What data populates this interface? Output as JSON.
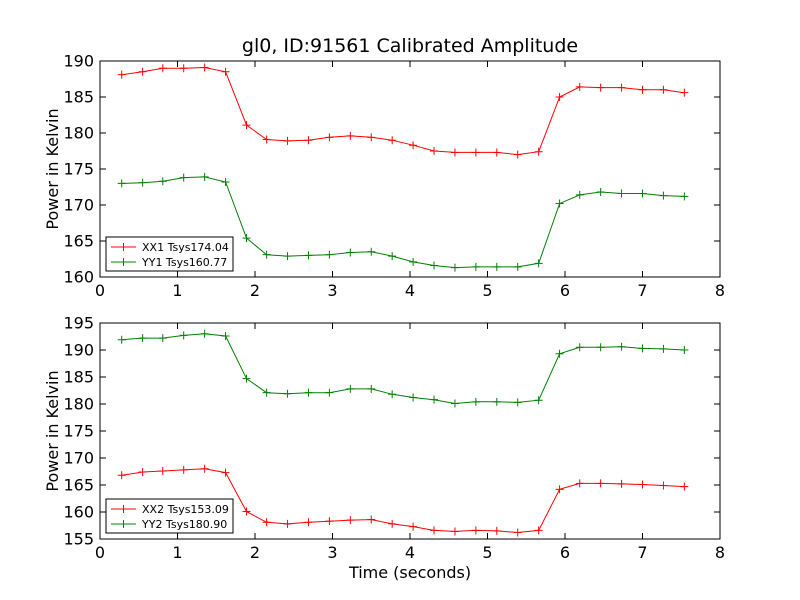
{
  "chart_data": [
    {
      "type": "line",
      "title": "gl0, ID:91561 Calibrated Amplitude",
      "xlabel": "",
      "ylabel": "Power in Kelvin",
      "xlim": [
        0,
        8
      ],
      "ylim": [
        160,
        190
      ],
      "xticks": [
        "0",
        "1",
        "2",
        "3",
        "4",
        "5",
        "6",
        "7",
        "8"
      ],
      "yticks": [
        "160",
        "165",
        "170",
        "175",
        "180",
        "185",
        "190"
      ],
      "legend_position": "lower-left",
      "x": [
        0.28,
        0.55,
        0.81,
        1.08,
        1.35,
        1.62,
        1.89,
        2.15,
        2.42,
        2.69,
        2.96,
        3.23,
        3.5,
        3.77,
        4.04,
        4.31,
        4.58,
        4.85,
        5.12,
        5.39,
        5.66,
        5.93,
        6.19,
        6.46,
        6.73,
        7.0,
        7.27,
        7.54
      ],
      "series": [
        {
          "name": "XX1 Tsys174.04",
          "color": "#ff0000",
          "values": [
            188.1,
            188.5,
            189.0,
            189.0,
            189.1,
            188.5,
            181.1,
            179.1,
            178.9,
            179.0,
            179.4,
            179.6,
            179.4,
            179.0,
            178.3,
            177.5,
            177.3,
            177.3,
            177.3,
            177.0,
            177.4,
            185.0,
            186.4,
            186.3,
            186.3,
            186.0,
            186.0,
            185.6
          ]
        },
        {
          "name": "YY1 Tsys160.77",
          "color": "#008000",
          "values": [
            173.0,
            173.1,
            173.3,
            173.8,
            173.9,
            173.2,
            165.4,
            163.1,
            162.9,
            163.0,
            163.1,
            163.4,
            163.5,
            162.9,
            162.1,
            161.6,
            161.3,
            161.4,
            161.4,
            161.4,
            161.9,
            170.2,
            171.4,
            171.8,
            171.6,
            171.6,
            171.3,
            171.2
          ]
        }
      ]
    },
    {
      "type": "line",
      "title": "",
      "xlabel": "Time (seconds)",
      "ylabel": "Power in Kelvin",
      "xlim": [
        0,
        8
      ],
      "ylim": [
        155,
        195
      ],
      "xticks": [
        "0",
        "1",
        "2",
        "3",
        "4",
        "5",
        "6",
        "7",
        "8"
      ],
      "yticks": [
        "155",
        "160",
        "165",
        "170",
        "175",
        "180",
        "185",
        "190",
        "195"
      ],
      "legend_position": "lower-left",
      "x": [
        0.28,
        0.55,
        0.81,
        1.08,
        1.35,
        1.62,
        1.89,
        2.15,
        2.42,
        2.69,
        2.96,
        3.23,
        3.5,
        3.77,
        4.04,
        4.31,
        4.58,
        4.85,
        5.12,
        5.39,
        5.66,
        5.93,
        6.19,
        6.46,
        6.73,
        7.0,
        7.27,
        7.54
      ],
      "series": [
        {
          "name": "XX2 Tsys153.09",
          "color": "#ff0000",
          "values": [
            166.8,
            167.4,
            167.6,
            167.8,
            168.0,
            167.3,
            160.1,
            158.1,
            157.8,
            158.1,
            158.3,
            158.5,
            158.6,
            157.8,
            157.3,
            156.6,
            156.4,
            156.6,
            156.5,
            156.2,
            156.6,
            164.2,
            165.3,
            165.3,
            165.2,
            165.1,
            164.9,
            164.7
          ]
        },
        {
          "name": "YY2 Tsys180.90",
          "color": "#008000",
          "values": [
            191.9,
            192.2,
            192.2,
            192.7,
            193.0,
            192.6,
            184.7,
            182.1,
            181.9,
            182.1,
            182.1,
            182.8,
            182.8,
            181.8,
            181.2,
            180.8,
            180.1,
            180.4,
            180.4,
            180.3,
            180.7,
            189.3,
            190.5,
            190.5,
            190.6,
            190.3,
            190.2,
            190.0
          ]
        }
      ]
    }
  ]
}
